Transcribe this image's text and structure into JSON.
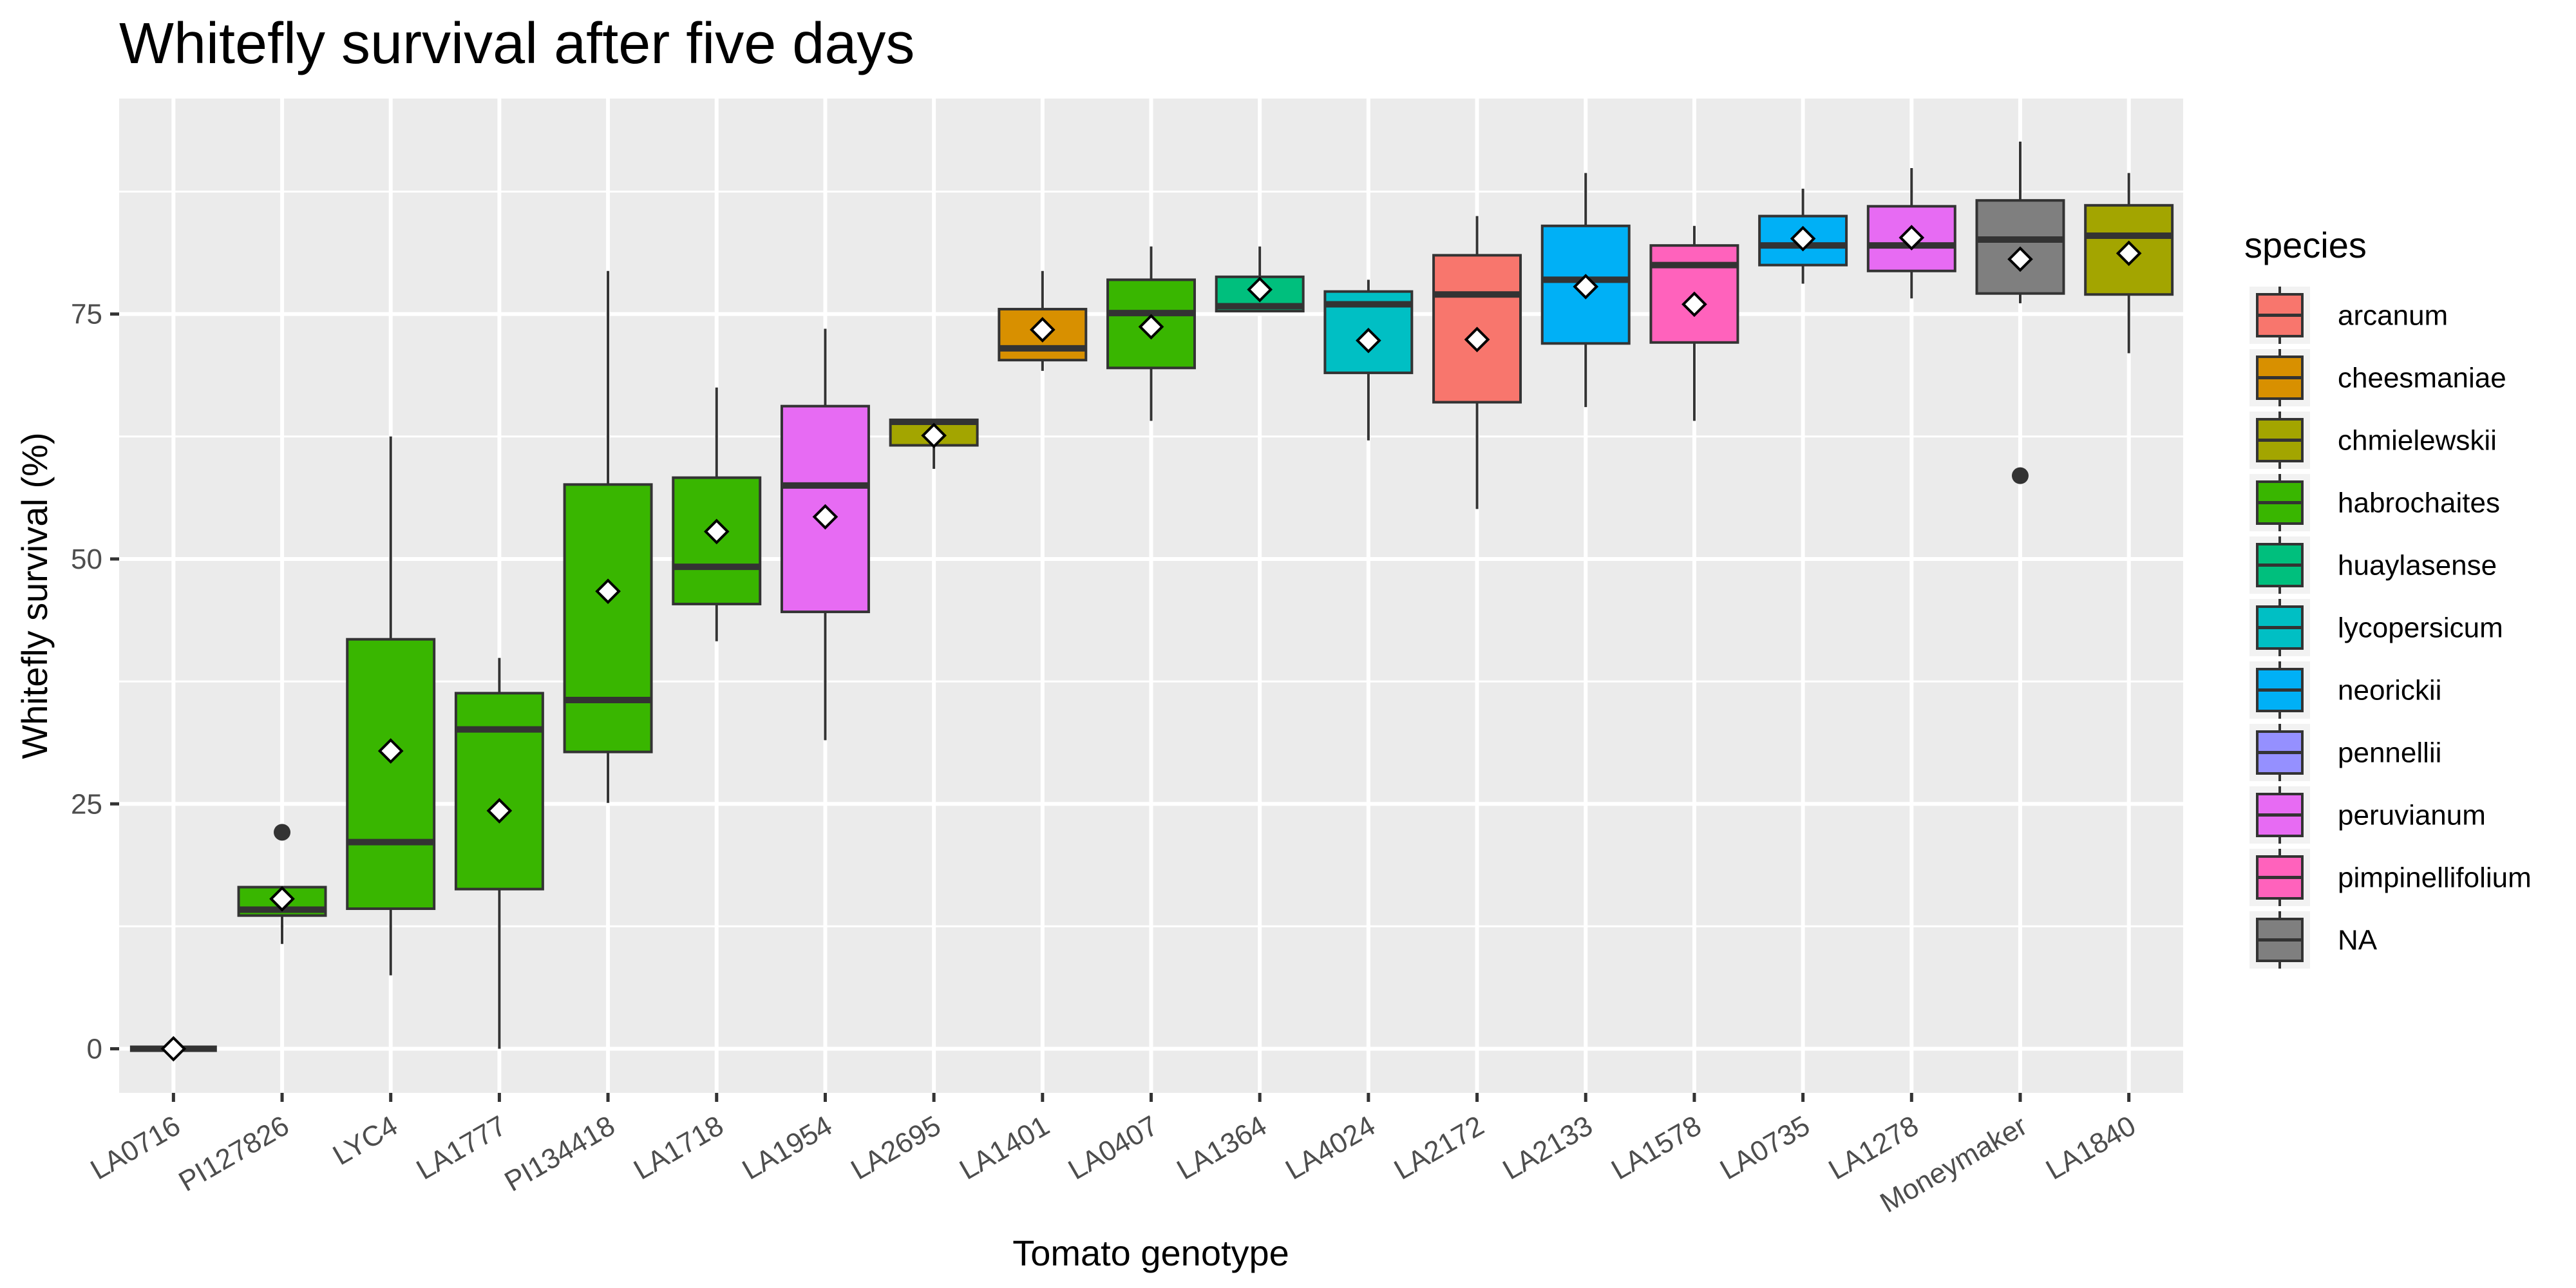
{
  "chart_data": {
    "type": "box",
    "title": "Whitefly survival after five days",
    "xlabel": "Tomato genotype",
    "ylabel": "Whitefly survival (%)",
    "ylim": [
      -4.5,
      97
    ],
    "yticks": [
      0,
      25,
      50,
      75
    ],
    "grid": true,
    "legend": {
      "title": "species",
      "position": "right",
      "entries": [
        {
          "label": "arcanum",
          "color": "#F8766D"
        },
        {
          "label": "cheesmaniae",
          "color": "#D89000"
        },
        {
          "label": "chmielewskii",
          "color": "#A3A500"
        },
        {
          "label": "habrochaites",
          "color": "#39B600"
        },
        {
          "label": "huaylasense",
          "color": "#00BF7D"
        },
        {
          "label": "lycopersicum",
          "color": "#00BFC4"
        },
        {
          "label": "neorickii",
          "color": "#00B0F6"
        },
        {
          "label": "pennellii",
          "color": "#9590FF"
        },
        {
          "label": "peruvianum",
          "color": "#E76BF3"
        },
        {
          "label": "pimpinellifolium",
          "color": "#FF62BC"
        },
        {
          "label": "NA",
          "color": "#7F7F7F"
        }
      ]
    },
    "boxes": [
      {
        "genotype": "LA0716",
        "species": "habrochaites",
        "min": 0,
        "q1": 0,
        "median": 0,
        "q3": 0,
        "max": 0,
        "mean": 0,
        "outliers": []
      },
      {
        "genotype": "PI127826",
        "species": "habrochaites",
        "min": 10.7,
        "q1": 13.6,
        "median": 14.2,
        "q3": 16.5,
        "max": 16.5,
        "mean": 15.3,
        "outliers": [
          22.1
        ]
      },
      {
        "genotype": "LYC4",
        "species": "habrochaites",
        "min": 7.5,
        "q1": 14.3,
        "median": 21.1,
        "q3": 41.8,
        "max": 62.5,
        "mean": 30.4,
        "outliers": []
      },
      {
        "genotype": "LA1777",
        "species": "habrochaites",
        "min": 0,
        "q1": 16.3,
        "median": 32.6,
        "q3": 36.3,
        "max": 39.9,
        "mean": 24.3,
        "outliers": []
      },
      {
        "genotype": "PI134418",
        "species": "habrochaites",
        "min": 25.1,
        "q1": 30.3,
        "median": 35.6,
        "q3": 57.6,
        "max": 79.4,
        "mean": 46.7,
        "outliers": []
      },
      {
        "genotype": "LA1718",
        "species": "habrochaites",
        "min": 41.6,
        "q1": 45.4,
        "median": 49.2,
        "q3": 58.3,
        "max": 67.5,
        "mean": 52.8,
        "outliers": []
      },
      {
        "genotype": "LA1954",
        "species": "peruvianum",
        "min": 31.5,
        "q1": 44.6,
        "median": 57.5,
        "q3": 65.6,
        "max": 73.5,
        "mean": 54.3,
        "outliers": []
      },
      {
        "genotype": "LA2695",
        "species": "chmielewskii",
        "min": 59.2,
        "q1": 61.6,
        "median": 64.0,
        "q3": 64.2,
        "max": 64.2,
        "mean": 62.6,
        "outliers": []
      },
      {
        "genotype": "LA1401",
        "species": "cheesmaniae",
        "min": 69.2,
        "q1": 70.3,
        "median": 71.5,
        "q3": 75.5,
        "max": 79.4,
        "mean": 73.4,
        "outliers": []
      },
      {
        "genotype": "LA0407",
        "species": "habrochaites",
        "min": 64.1,
        "q1": 69.5,
        "median": 75.1,
        "q3": 78.5,
        "max": 81.9,
        "mean": 73.7,
        "outliers": []
      },
      {
        "genotype": "LA1364",
        "species": "huaylasense",
        "min": 75.3,
        "q1": 75.3,
        "median": 75.8,
        "q3": 78.8,
        "max": 81.9,
        "mean": 77.5,
        "outliers": []
      },
      {
        "genotype": "LA4024",
        "species": "lycopersicum",
        "min": 62.1,
        "q1": 69.0,
        "median": 76.0,
        "q3": 77.3,
        "max": 78.5,
        "mean": 72.3,
        "outliers": []
      },
      {
        "genotype": "LA2172",
        "species": "arcanum",
        "min": 55.1,
        "q1": 66.0,
        "median": 77.0,
        "q3": 81.0,
        "max": 85.0,
        "mean": 72.4,
        "outliers": []
      },
      {
        "genotype": "LA2133",
        "species": "neorickii",
        "min": 65.5,
        "q1": 72.0,
        "median": 78.5,
        "q3": 84.0,
        "max": 89.4,
        "mean": 77.8,
        "outliers": []
      },
      {
        "genotype": "LA1578",
        "species": "pimpinellifolium",
        "min": 64.1,
        "q1": 72.1,
        "median": 80.0,
        "q3": 82.0,
        "max": 84.0,
        "mean": 76.0,
        "outliers": []
      },
      {
        "genotype": "LA0735",
        "species": "neorickii",
        "min": 78.1,
        "q1": 80.0,
        "median": 82.0,
        "q3": 85.0,
        "max": 87.8,
        "mean": 82.7,
        "outliers": []
      },
      {
        "genotype": "LA1278",
        "species": "peruvianum",
        "min": 76.6,
        "q1": 79.4,
        "median": 82.0,
        "q3": 86.0,
        "max": 89.9,
        "mean": 82.8,
        "outliers": []
      },
      {
        "genotype": "Moneymaker",
        "species": "NA",
        "min": 76.1,
        "q1": 77.1,
        "median": 82.6,
        "q3": 86.6,
        "max": 92.6,
        "mean": 80.6,
        "outliers": [
          58.5
        ]
      },
      {
        "genotype": "LA1840",
        "species": "chmielewskii",
        "min": 71.0,
        "q1": 77.0,
        "median": 83.0,
        "q3": 86.1,
        "max": 89.4,
        "mean": 81.2,
        "outliers": []
      }
    ]
  }
}
